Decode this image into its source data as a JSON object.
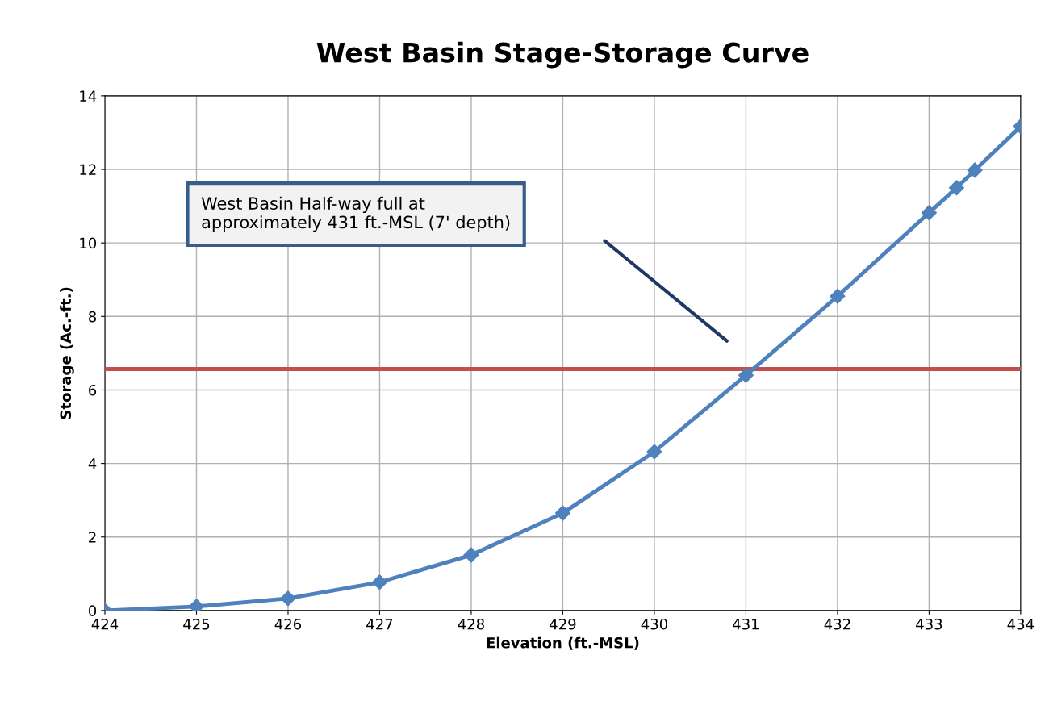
{
  "chart_data": {
    "type": "line",
    "title": "West Basin Stage-Storage Curve",
    "xlabel": "Elevation (ft.-MSL)",
    "ylabel": "Storage (Ac.-ft.)",
    "x": [
      424,
      425,
      426,
      427,
      428,
      429,
      430,
      431,
      432,
      433,
      433.3,
      433.5,
      434
    ],
    "series": [
      {
        "color": "#4f81bd",
        "values": [
          0,
          0.11,
          0.33,
          0.77,
          1.51,
          2.65,
          4.32,
          6.4,
          8.55,
          10.82,
          11.5,
          11.98,
          13.17
        ]
      }
    ],
    "xlim": [
      424,
      434
    ],
    "xticks": [
      424,
      425,
      426,
      427,
      428,
      429,
      430,
      431,
      432,
      433,
      434
    ],
    "ylim": [
      0,
      14
    ],
    "yticks": [
      0,
      2,
      4,
      6,
      8,
      10,
      12,
      14
    ],
    "grid": true,
    "marker": "diamond",
    "line_style": "solid",
    "ref_lines": [
      {
        "axis": "y",
        "value": 6.57,
        "label": null,
        "color": "#c0504d"
      }
    ],
    "annotations": [
      "West Basin Half-way full at\napproximately 431 ft.-MSL (7' depth)"
    ]
  }
}
